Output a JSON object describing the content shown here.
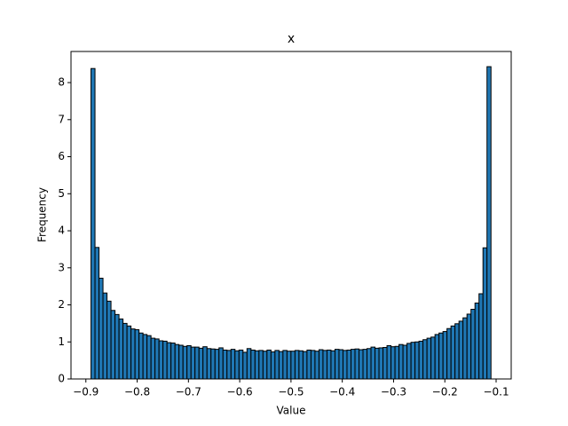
{
  "chart_data": {
    "type": "histogram",
    "title": "x",
    "xlabel": "Value",
    "ylabel": "Frequency",
    "color": "#1f77b4",
    "edgecolor": "#000000",
    "bins": [
      -0.89,
      -0.8822,
      -0.8744,
      -0.8666,
      -0.8588,
      -0.851,
      -0.8432,
      -0.8354,
      -0.8276,
      -0.8198,
      -0.812,
      -0.8042,
      -0.7964,
      -0.7886,
      -0.7808,
      -0.773,
      -0.7652,
      -0.7574,
      -0.7496,
      -0.7418,
      -0.734,
      -0.7262,
      -0.7184,
      -0.7106,
      -0.7028,
      -0.695,
      -0.6872,
      -0.6794,
      -0.6716,
      -0.6638,
      -0.656,
      -0.6482,
      -0.6404,
      -0.6326,
      -0.6248,
      -0.617,
      -0.6092,
      -0.6014,
      -0.5936,
      -0.5858,
      -0.578,
      -0.5702,
      -0.5624,
      -0.5546,
      -0.5468,
      -0.539,
      -0.5312,
      -0.5234,
      -0.5156,
      -0.5078,
      -0.5,
      -0.4922,
      -0.4844,
      -0.4766,
      -0.4688,
      -0.461,
      -0.4532,
      -0.4454,
      -0.4376,
      -0.4298,
      -0.422,
      -0.4142,
      -0.4064,
      -0.3986,
      -0.3908,
      -0.383,
      -0.3752,
      -0.3674,
      -0.3596,
      -0.3518,
      -0.344,
      -0.3362,
      -0.3284,
      -0.3206,
      -0.3128,
      -0.305,
      -0.2972,
      -0.2894,
      -0.2816,
      -0.2738,
      -0.266,
      -0.2582,
      -0.2504,
      -0.2426,
      -0.2348,
      -0.227,
      -0.2192,
      -0.2114,
      -0.2036,
      -0.1958,
      -0.188,
      -0.1802,
      -0.1724,
      -0.1646,
      -0.1568,
      -0.149,
      -0.1412,
      -0.1334,
      -0.1256,
      -0.1178,
      -0.11
    ],
    "values": [
      8.38,
      3.55,
      2.72,
      2.32,
      2.1,
      1.85,
      1.74,
      1.62,
      1.5,
      1.43,
      1.35,
      1.33,
      1.24,
      1.2,
      1.17,
      1.1,
      1.08,
      1.03,
      1.02,
      0.98,
      0.97,
      0.93,
      0.91,
      0.88,
      0.9,
      0.86,
      0.86,
      0.83,
      0.87,
      0.82,
      0.81,
      0.8,
      0.84,
      0.78,
      0.77,
      0.8,
      0.76,
      0.78,
      0.72,
      0.82,
      0.78,
      0.76,
      0.77,
      0.75,
      0.78,
      0.73,
      0.77,
      0.74,
      0.77,
      0.75,
      0.75,
      0.77,
      0.76,
      0.74,
      0.78,
      0.77,
      0.75,
      0.79,
      0.77,
      0.78,
      0.76,
      0.8,
      0.79,
      0.77,
      0.78,
      0.8,
      0.81,
      0.79,
      0.8,
      0.82,
      0.86,
      0.83,
      0.84,
      0.85,
      0.9,
      0.87,
      0.88,
      0.93,
      0.91,
      0.96,
      0.99,
      1.0,
      1.02,
      1.06,
      1.1,
      1.13,
      1.2,
      1.24,
      1.28,
      1.36,
      1.43,
      1.49,
      1.56,
      1.65,
      1.75,
      1.88,
      2.05,
      2.3,
      3.54,
      8.43
    ],
    "xlim": [
      -0.929,
      -0.0706
    ],
    "ylim": [
      0,
      8.84
    ],
    "xticks": [
      {
        "value": -0.9,
        "label": "−0.9"
      },
      {
        "value": -0.8,
        "label": "−0.8"
      },
      {
        "value": -0.7,
        "label": "−0.7"
      },
      {
        "value": -0.6,
        "label": "−0.6"
      },
      {
        "value": -0.5,
        "label": "−0.5"
      },
      {
        "value": -0.4,
        "label": "−0.4"
      },
      {
        "value": -0.3,
        "label": "−0.3"
      },
      {
        "value": -0.2,
        "label": "−0.2"
      },
      {
        "value": -0.1,
        "label": "−0.1"
      }
    ],
    "yticks": [
      0,
      1,
      2,
      3,
      4,
      5,
      6,
      7,
      8
    ]
  }
}
